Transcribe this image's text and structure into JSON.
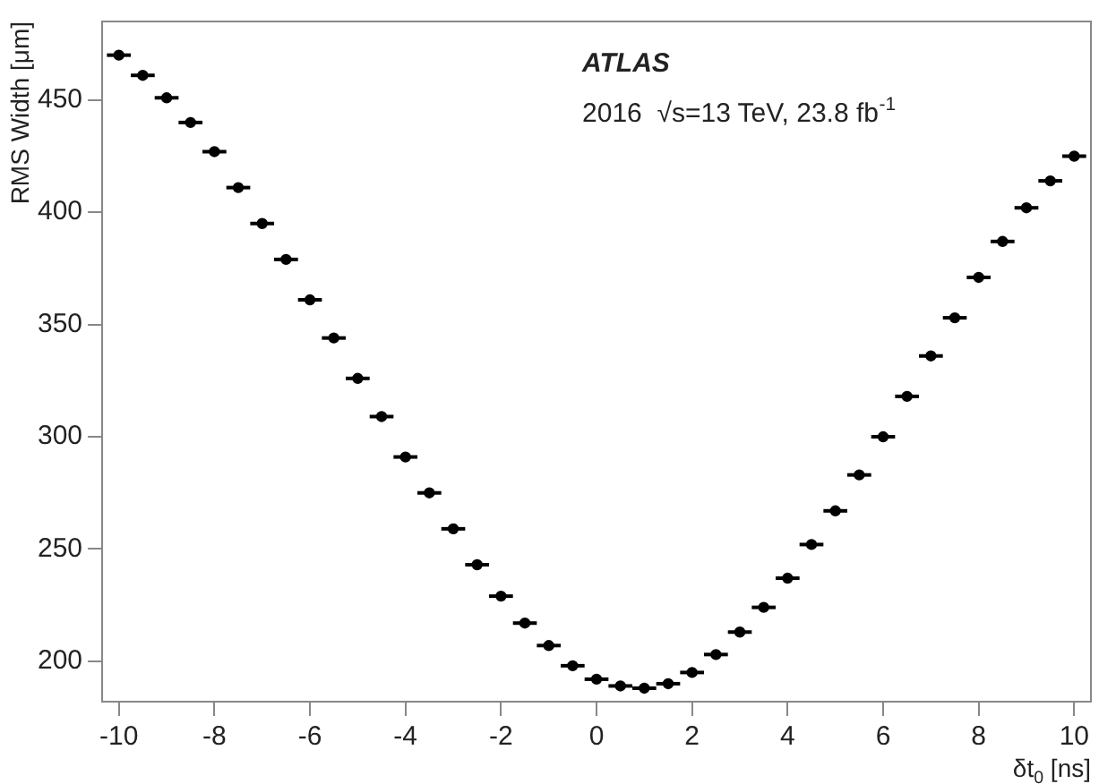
{
  "chart_data": {
    "type": "scatter",
    "xlabel": "δt$_{0}$ [ns]",
    "ylabel": "RMS Width [μm]",
    "annotations": [
      "ATLAS",
      "2016  √s=13 TeV, 23.8 fb$^{-1}$"
    ],
    "x": [
      -10,
      -9.5,
      -9,
      -8.5,
      -8,
      -7.5,
      -7,
      -6.5,
      -6,
      -5.5,
      -5,
      -4.5,
      -4,
      -3.5,
      -3,
      -2.5,
      -2,
      -1.5,
      -1,
      -0.5,
      0,
      0.5,
      1,
      1.5,
      2,
      2.5,
      3,
      3.5,
      4,
      4.5,
      5,
      5.5,
      6,
      6.5,
      7,
      7.5,
      8,
      8.5,
      9,
      9.5,
      10
    ],
    "series": [
      {
        "color": "#000000",
        "values": [
          470,
          461,
          451,
          440,
          427,
          411,
          395,
          379,
          361,
          344,
          326,
          309,
          291,
          275,
          259,
          243,
          229,
          217,
          207,
          198,
          192,
          189,
          188,
          190,
          195,
          203,
          213,
          224,
          237,
          252,
          267,
          283,
          300,
          318,
          336,
          353,
          371,
          387,
          402,
          414,
          425
        ],
        "xerrors": [
          0.25,
          0.25,
          0.25,
          0.25,
          0.25,
          0.25,
          0.25,
          0.25,
          0.25,
          0.25,
          0.25,
          0.25,
          0.25,
          0.25,
          0.25,
          0.25,
          0.25,
          0.25,
          0.25,
          0.25,
          0.25,
          0.25,
          0.25,
          0.25,
          0.25,
          0.25,
          0.25,
          0.25,
          0.25,
          0.25,
          0.25,
          0.25,
          0.25,
          0.25,
          0.25,
          0.25,
          0.25,
          0.25,
          0.25,
          0.25,
          0.25
        ]
      }
    ],
    "xlim": [
      -10.35,
      10.35
    ],
    "ylim": [
      182,
      485
    ],
    "xticks": [
      -10,
      -8,
      -6,
      -4,
      -2,
      0,
      2,
      4,
      6,
      8,
      10
    ],
    "yticks": [
      200,
      250,
      300,
      350,
      400,
      450
    ],
    "marker": "circle",
    "grid": false,
    "legend": false
  }
}
